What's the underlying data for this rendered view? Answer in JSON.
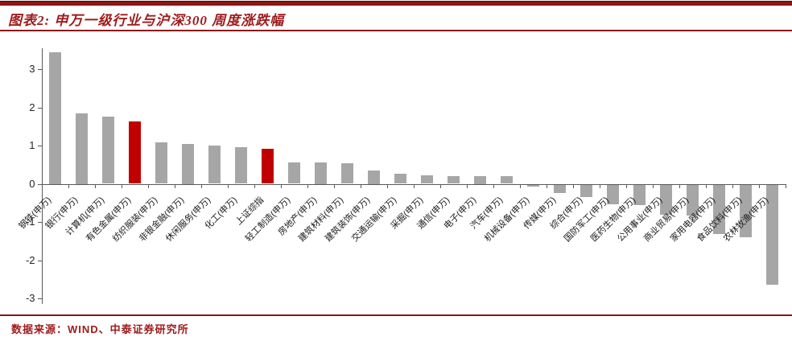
{
  "header": {
    "title": "图表2: 申万一级行业与沪深300 周度涨跌幅"
  },
  "footer": {
    "source_label": "数据来源：WIND、中泰证券研究所"
  },
  "colors": {
    "accent_dark_red": "#9e1b1b",
    "rule_red": "#8f1414",
    "bar_gray": "#a6a6a6",
    "bar_highlight_red": "#c00000",
    "axis_gray": "#595959"
  },
  "chart_data": {
    "type": "bar",
    "title": "申万一级行业与沪深300 周度涨跌幅",
    "xlabel": "",
    "ylabel": "",
    "grid": false,
    "legend_position": "none",
    "ylim": [
      -3.15,
      3.55
    ],
    "y_ticks": [
      3,
      2,
      1,
      0,
      -1,
      -2,
      -3
    ],
    "categories": [
      "钢铁(申万)",
      "银行(申万)",
      "计算机(申万)",
      "有色金属(申万)",
      "纺织服装(申万)",
      "非银金融(申万)",
      "休闲服务(申万)",
      "化工(申万)",
      "上证综指",
      "轻工制造(申万)",
      "房地产(申万)",
      "建筑材料(申万)",
      "建筑装饰(申万)",
      "交通运输(申万)",
      "采掘(申万)",
      "通信(申万)",
      "电子(申万)",
      "汽车(申万)",
      "机械设备(申万)",
      "传媒(申万)",
      "综合(申万)",
      "国防军工(申万)",
      "医药生物(申万)",
      "公用事业(申万)",
      "商业贸易(申万)",
      "家用电器(申万)",
      "食品饮料(申万)",
      "农林牧渔(申万)"
    ],
    "values": [
      3.45,
      1.85,
      1.76,
      1.63,
      1.09,
      1.05,
      0.99,
      0.96,
      0.91,
      0.56,
      0.55,
      0.54,
      0.35,
      0.27,
      0.22,
      0.21,
      0.2,
      0.19,
      -0.05,
      -0.22,
      -0.33,
      -0.51,
      -0.54,
      -0.78,
      -0.8,
      -1.29,
      -1.37,
      -2.63
    ],
    "highlighted_categories": [
      "有色金属(申万)",
      "上证综指"
    ],
    "bar_color": "#a6a6a6",
    "highlight_color": "#c00000"
  }
}
